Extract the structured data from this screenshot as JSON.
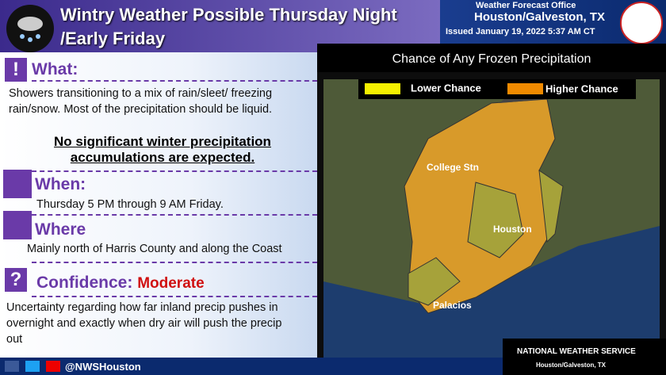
{
  "header": {
    "title_line1": "Wintry Weather Possible Thursday Night",
    "title_line2": "/Early Friday",
    "office": "Weather Forecast Office",
    "location": "Houston/Galveston, TX",
    "issued": "Issued January 19, 2022 5:37 AM CT"
  },
  "what": {
    "icon": "!",
    "heading": "What:",
    "text": "Showers transitioning to a mix of rain/sleet/ freezing rain/snow.  Most of the precipitation should be liquid.",
    "emphasis": "No significant winter precipitation accumulations are expected."
  },
  "when": {
    "heading": "When:",
    "text": "Thursday 5 PM through 9 AM Friday."
  },
  "where": {
    "heading": "Where",
    "text": "Mainly north of Harris County and along the Coast"
  },
  "confidence": {
    "icon": "?",
    "heading": "Confidence:",
    "level": "Moderate",
    "text": "Uncertainty regarding how far inland precip pushes in overnight and exactly when dry air will push the precip out"
  },
  "map": {
    "title": "Chance of Any Frozen Precipitation",
    "legend_lower": "Lower Chance",
    "legend_higher": "Higher Chance",
    "labels": [
      "College Stn",
      "Houston",
      "Palacios"
    ]
  },
  "footer": {
    "handle": "@NWSHouston",
    "nws": "NATIONAL WEATHER SERVICE",
    "nws_location": "Houston/Galveston, TX"
  }
}
